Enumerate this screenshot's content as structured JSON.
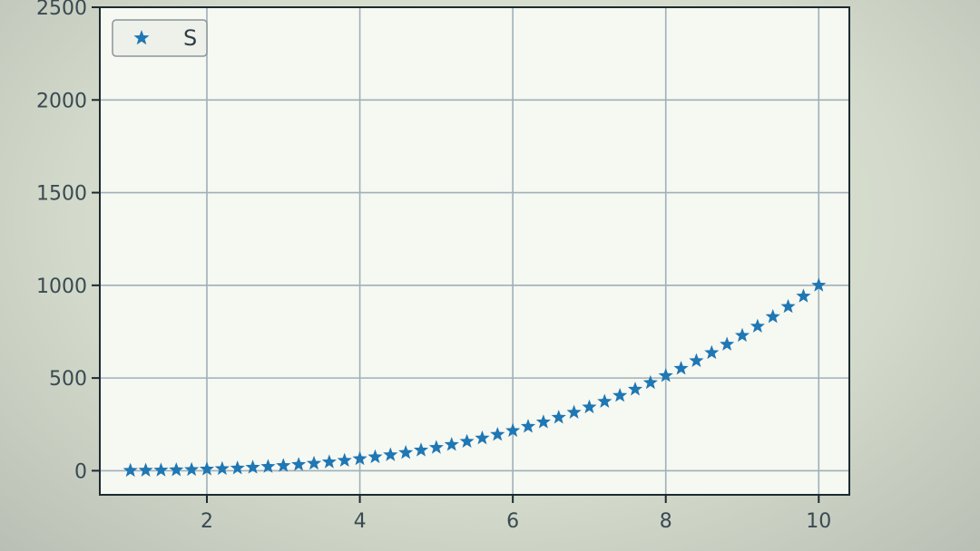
{
  "chart_data": {
    "type": "scatter",
    "title": "",
    "xlabel": "",
    "ylabel": "",
    "xlim": [
      0.6,
      10.4
    ],
    "ylim": [
      -130,
      2500
    ],
    "x_ticks": [
      2,
      4,
      6,
      8,
      10
    ],
    "x_tick_labels": [
      "2",
      "4",
      "6",
      "8",
      "10"
    ],
    "y_ticks": [
      0,
      500,
      1000,
      1500,
      2000,
      2500
    ],
    "y_tick_labels": [
      "0",
      "500",
      "1000",
      "1500",
      "2000",
      "2500"
    ],
    "grid": true,
    "legend_position": "top-left",
    "marker": "star",
    "series": [
      {
        "name": "S",
        "color": "#1f77b4",
        "points": [
          [
            1.0,
            1.0
          ],
          [
            1.2,
            1.7
          ],
          [
            1.4,
            2.7
          ],
          [
            1.6,
            4.1
          ],
          [
            1.8,
            5.8
          ],
          [
            2.0,
            8.0
          ],
          [
            2.2,
            10.6
          ],
          [
            2.4,
            13.8
          ],
          [
            2.6,
            17.6
          ],
          [
            2.8,
            22.0
          ],
          [
            3.0,
            27.0
          ],
          [
            3.2,
            32.8
          ],
          [
            3.4,
            39.3
          ],
          [
            3.6,
            46.7
          ],
          [
            3.8,
            54.9
          ],
          [
            4.0,
            64.0
          ],
          [
            4.2,
            74.1
          ],
          [
            4.4,
            85.2
          ],
          [
            4.6,
            97.3
          ],
          [
            4.8,
            110.6
          ],
          [
            5.0,
            125.0
          ],
          [
            5.2,
            140.6
          ],
          [
            5.4,
            157.5
          ],
          [
            5.6,
            175.6
          ],
          [
            5.8,
            195.1
          ],
          [
            6.0,
            216.0
          ],
          [
            6.2,
            238.3
          ],
          [
            6.4,
            262.1
          ],
          [
            6.6,
            287.5
          ],
          [
            6.8,
            314.4
          ],
          [
            7.0,
            343.0
          ],
          [
            7.2,
            373.2
          ],
          [
            7.4,
            405.2
          ],
          [
            7.6,
            439.0
          ],
          [
            7.8,
            474.6
          ],
          [
            8.0,
            512.0
          ],
          [
            8.2,
            551.4
          ],
          [
            8.4,
            592.7
          ],
          [
            8.6,
            636.1
          ],
          [
            8.8,
            681.5
          ],
          [
            9.0,
            729.0
          ],
          [
            9.2,
            778.7
          ],
          [
            9.4,
            830.6
          ],
          [
            9.6,
            884.7
          ],
          [
            9.8,
            941.2
          ],
          [
            10.0,
            1000.0
          ]
        ]
      }
    ]
  }
}
